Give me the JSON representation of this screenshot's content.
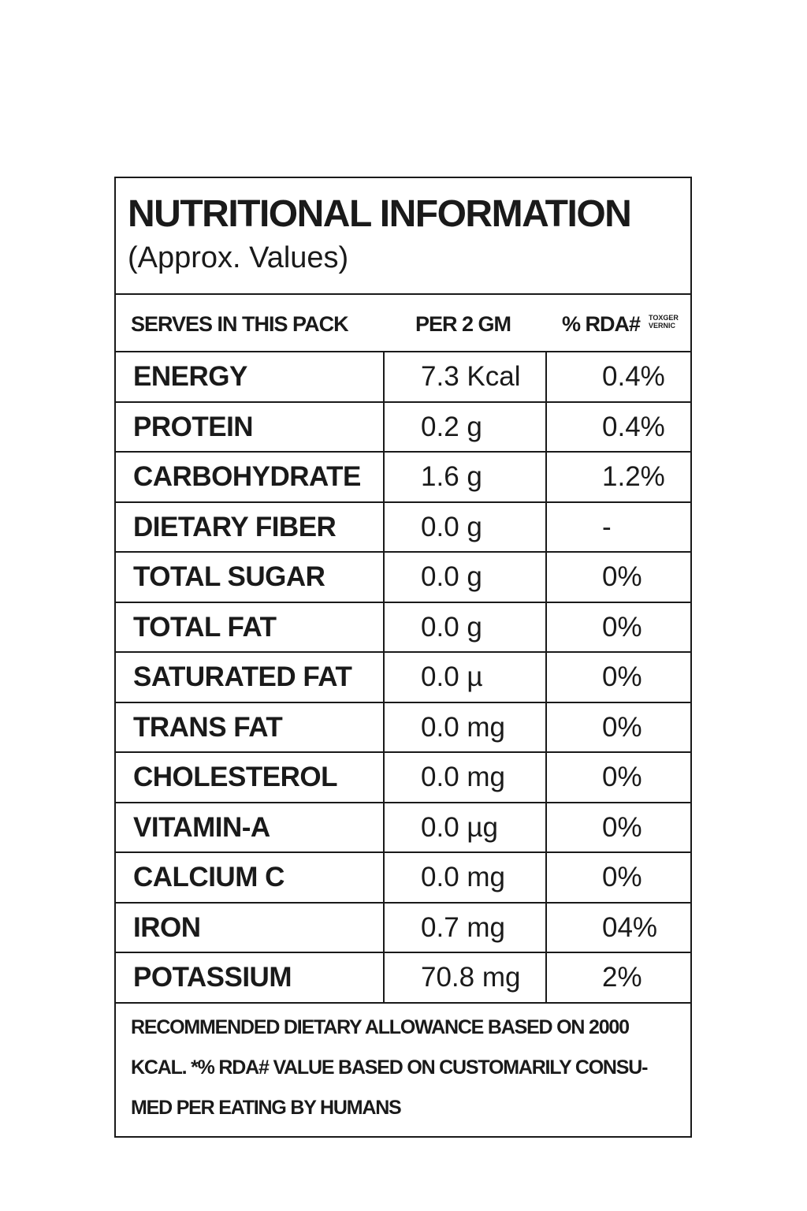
{
  "title": "NUTRITIONAL INFORMATION",
  "subtitle": "(Approx. Values)",
  "header": {
    "serves": "SERVES IN THIS PACK",
    "per": "PER 2 GM",
    "rda": "% RDA#",
    "note": "TOXGER\nVERNIC"
  },
  "rows": [
    {
      "name": "ENERGY",
      "value": "7.3 Kcal",
      "rda": "0.4%"
    },
    {
      "name": "PROTEIN",
      "value": "0.2 g",
      "rda": "0.4%"
    },
    {
      "name": "CARBOHYDRATE",
      "value": "1.6 g",
      "rda": "1.2%"
    },
    {
      "name": "DIETARY FIBER",
      "value": "0.0 g",
      "rda": "-"
    },
    {
      "name": "TOTAL SUGAR",
      "value": "0.0 g",
      "rda": "0%"
    },
    {
      "name": "TOTAL FAT",
      "value": "0.0 g",
      "rda": "0%"
    },
    {
      "name": "SATURATED FAT",
      "value": "0.0 µ",
      "rda": "0%"
    },
    {
      "name": "TRANS FAT",
      "value": "0.0 mg",
      "rda": "0%"
    },
    {
      "name": "CHOLESTEROL",
      "value": "0.0 mg",
      "rda": "0%"
    },
    {
      "name": "VITAMIN-A",
      "value": "0.0 µg",
      "rda": "0%"
    },
    {
      "name": "CALCIUM C",
      "value": "0.0 mg",
      "rda": "0%"
    },
    {
      "name": "IRON",
      "value": "0.7 mg",
      "rda": "04%"
    },
    {
      "name": "POTASSIUM",
      "value": "70.8 mg",
      "rda": "2%"
    }
  ],
  "footer": {
    "line1": "RECOMMENDED DIETARY ALLOWANCE BASED ON 2000",
    "line2": "KCAL. *% RDA# VALUE BASED ON CUSTOMARILY CONSU-",
    "line3": "MED PER EATING BY HUMANS"
  }
}
